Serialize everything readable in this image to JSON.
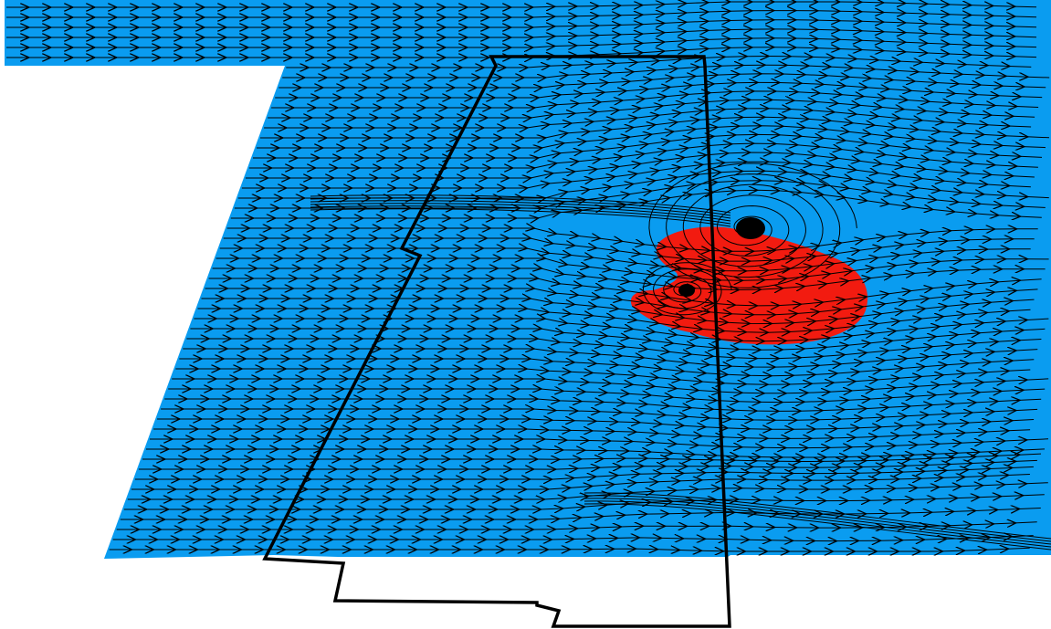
{
  "image": {
    "kind": "flow-streamline-visualization",
    "colors": {
      "background": "#ffffff",
      "flow_field": "#0a9cf0",
      "separation_region": "#f21b10",
      "streamline": "#000000",
      "outline": "#000000",
      "vortex_core": "#000000"
    },
    "icons": [
      "streamline-arrow-icon"
    ]
  }
}
